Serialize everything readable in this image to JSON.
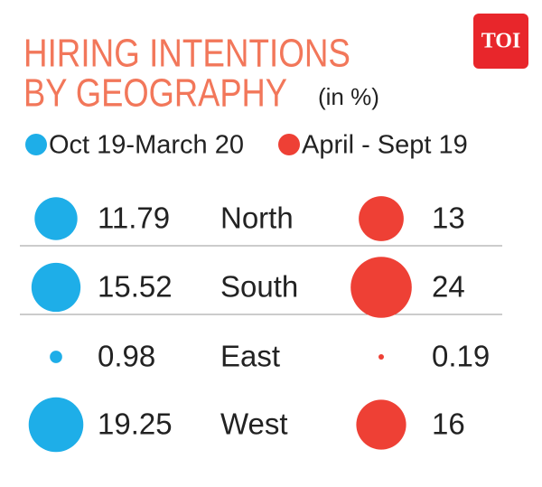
{
  "logo": "TOI",
  "chart_data": {
    "type": "bubble-table",
    "title": [
      "HIRING INTENTIONS",
      "BY GEOGRAPHY"
    ],
    "subtitle": "(in %)",
    "categories": [
      "North",
      "South",
      "East",
      "West"
    ],
    "series": [
      {
        "name": "Oct 19-March 20",
        "color": "#1eaee8",
        "values": [
          11.79,
          15.52,
          0.98,
          19.25
        ]
      },
      {
        "name": "April - Sept 19",
        "color": "#ee4035",
        "values": [
          13,
          24,
          0.19,
          16
        ]
      }
    ]
  }
}
